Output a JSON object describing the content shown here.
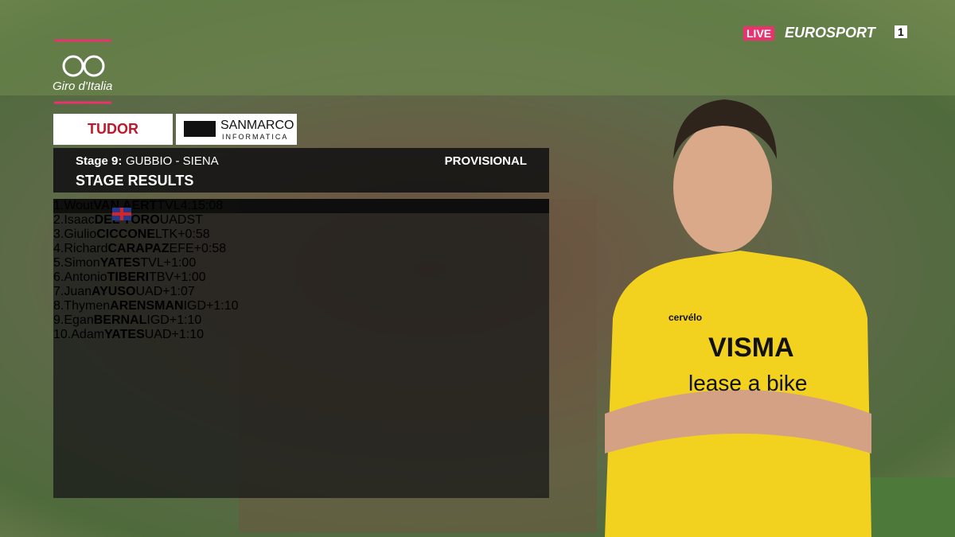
{
  "broadcast": {
    "live": "LIVE",
    "channel": "EUROSPORT",
    "channel_number": "1"
  },
  "race_logo": "Giro d'Italia",
  "sponsors": {
    "tudor": "TUDOR",
    "sanmarco": "SANMARCO",
    "sanmarco_sub": "INFORMATICA"
  },
  "header": {
    "stage": "Stage 9:",
    "route": "GUBBIO - SIENA",
    "status": "PROVISIONAL",
    "title": "STAGE RESULTS"
  },
  "table": {
    "rows": [
      {
        "rank": "1.",
        "first": "Wout",
        "last": "VAN AERT",
        "team": "TVL",
        "time": "4:15:08"
      },
      {
        "rank": "2.",
        "first": "Isaac",
        "last": "DEL TORO",
        "team": "UAD",
        "time": "ST"
      },
      {
        "rank": "3.",
        "first": "Giulio",
        "last": "CICCONE",
        "team": "LTK",
        "time": "+0:58"
      },
      {
        "rank": "4.",
        "first": "Richard",
        "last": "CARAPAZ",
        "team": "EFE",
        "time": "+0:58"
      },
      {
        "rank": "5.",
        "first": "Simon",
        "last": "YATES",
        "team": "TVL",
        "time": "+1:00"
      },
      {
        "rank": "6.",
        "first": "Antonio",
        "last": "TIBERI",
        "team": "TBV",
        "time": "+1:00"
      },
      {
        "rank": "7.",
        "first": "Juan",
        "last": "AYUSO",
        "team": "UAD",
        "time": "+1:07"
      },
      {
        "rank": "8.",
        "first": "Thymen",
        "last": "ARENSMAN",
        "team": "IGD",
        "time": "+1:10"
      },
      {
        "rank": "9.",
        "first": "Egan",
        "last": "BERNAL",
        "team": "IGD",
        "time": "+1:10"
      },
      {
        "rank": "10.",
        "first": "Adam",
        "last": "YATES",
        "team": "UAD",
        "time": "+1:10"
      }
    ]
  },
  "jersey": {
    "sponsor": "VISMA",
    "sponsor2": "lease a bike",
    "bike": "cervélo"
  }
}
